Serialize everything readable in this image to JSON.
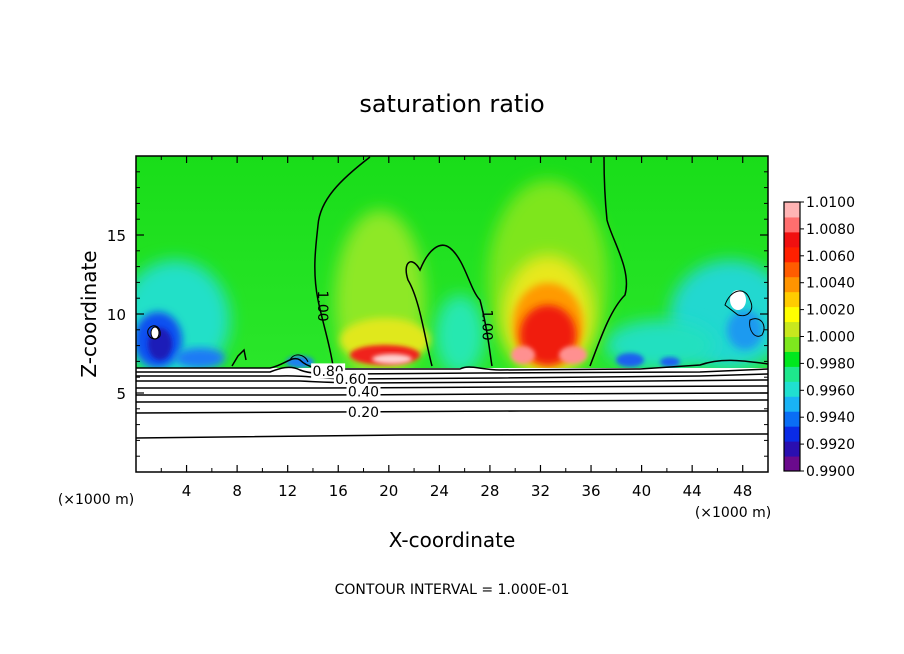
{
  "chart_data": {
    "type": "heatmap",
    "title": "saturation ratio",
    "xlabel": "X-coordinate",
    "ylabel": "Z-coordinate",
    "x_unit": "(×1000 m)",
    "xlim": [
      0,
      50
    ],
    "ylim": [
      0,
      20
    ],
    "x_ticks": [
      4,
      8,
      12,
      16,
      20,
      24,
      28,
      32,
      36,
      40,
      44,
      48
    ],
    "y_ticks": [
      5,
      10,
      15
    ],
    "colorbar": {
      "levels": [
        0.99,
        0.992,
        0.994,
        0.996,
        0.998,
        1.0,
        1.002,
        1.004,
        1.006,
        1.008,
        1.01
      ],
      "labels": [
        "0.9900",
        "0.9920",
        "0.9940",
        "0.9960",
        "0.9980",
        "1.0000",
        "1.0020",
        "1.0040",
        "1.0060",
        "1.0080",
        "1.0100"
      ],
      "colors": [
        "#6a0a8c",
        "#2a0fb0",
        "#0a2be6",
        "#0a6ef5",
        "#19b3f5",
        "#20e0d0",
        "#1ee88c",
        "#00e81e",
        "#7ee81e",
        "#c8e81e",
        "#ffff00",
        "#ffcc00",
        "#ff9400",
        "#ff5c00",
        "#ff2000",
        "#f01010",
        "#ff6e6e",
        "#ffb4b4"
      ]
    },
    "contour_labels": [
      {
        "text": "1.00",
        "x": 14.8,
        "y": 10.5
      },
      {
        "text": "1.00",
        "x": 27.8,
        "y": 9.3
      },
      {
        "text": "0.80",
        "x": 15.2,
        "y": 6.4
      },
      {
        "text": "0.60",
        "x": 17.0,
        "y": 5.9
      },
      {
        "text": "0.40",
        "x": 18.0,
        "y": 5.1
      },
      {
        "text": "0.20",
        "x": 18.0,
        "y": 3.8
      }
    ],
    "contour_interval_text": "CONTOUR INTERVAL = 1.000E-01"
  }
}
